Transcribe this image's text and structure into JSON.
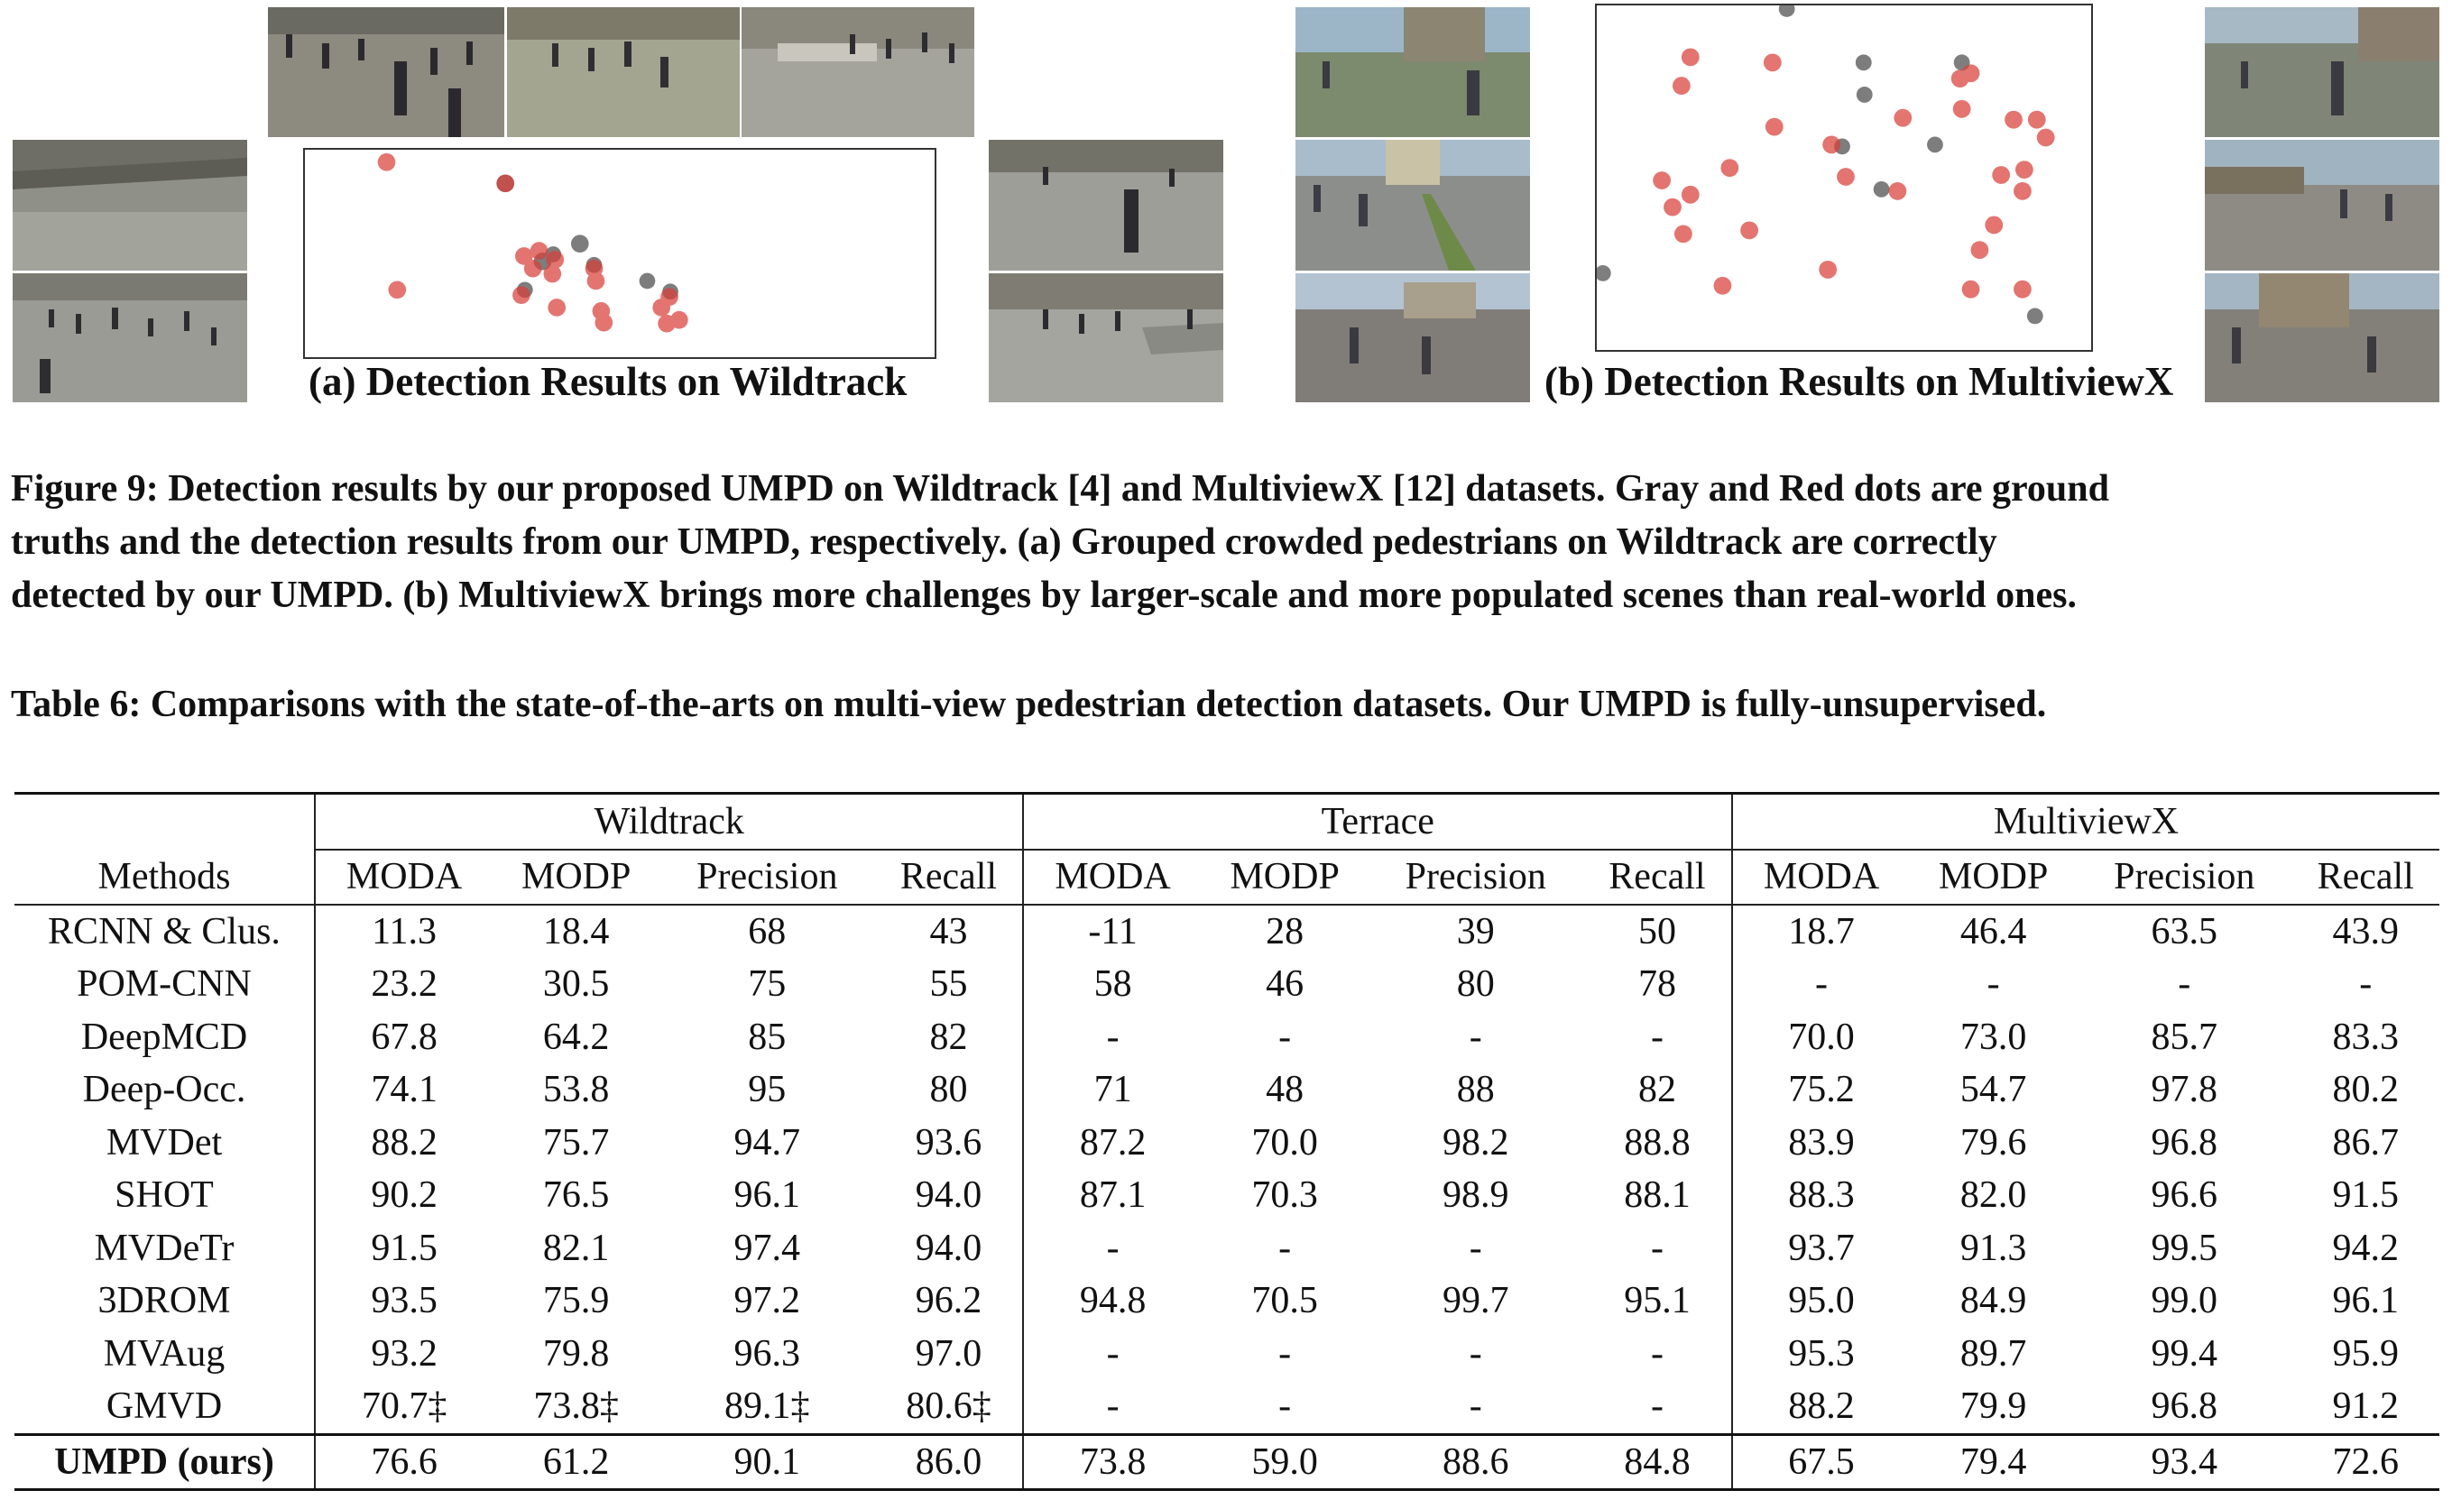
{
  "figure": {
    "wildtrack_caption": "(a) Detection Results on Wildtrack",
    "multiviewx_caption": "(b) Detection Results on MultiviewX",
    "caption_lines": [
      "Figure 9: Detection results by our proposed UMPD on Wildtrack [4] and MultiviewX [12] datasets. Gray and Red dots are ground",
      "truths and the detection results from our UMPD, respectively. (a) Grouped crowded pedestrians on Wildtrack are correctly",
      "detected by our UMPD. (b) MultiviewX brings more challenges by larger-scale and more populated scenes than real-world ones."
    ],
    "colors": {
      "ground_truth": "#707070",
      "detection": "#d9403a"
    }
  },
  "table": {
    "caption": "Table 6: Comparisons with the state-of-the-arts on multi-view pedestrian detection datasets. Our UMPD is fully-unsupervised.",
    "method_header": "Methods",
    "groups": [
      "Wildtrack",
      "Terrace",
      "MultiviewX"
    ],
    "columns": [
      "MODA",
      "MODP",
      "Precision",
      "Recall"
    ],
    "rows": [
      {
        "method": "RCNN & Clus.",
        "values": [
          "11.3",
          "18.4",
          "68",
          "43",
          "-11",
          "28",
          "39",
          "50",
          "18.7",
          "46.4",
          "63.5",
          "43.9"
        ]
      },
      {
        "method": "POM-CNN",
        "values": [
          "23.2",
          "30.5",
          "75",
          "55",
          "58",
          "46",
          "80",
          "78",
          "-",
          "-",
          "-",
          "-"
        ]
      },
      {
        "method": "DeepMCD",
        "values": [
          "67.8",
          "64.2",
          "85",
          "82",
          "-",
          "-",
          "-",
          "-",
          "70.0",
          "73.0",
          "85.7",
          "83.3"
        ]
      },
      {
        "method": "Deep-Occ.",
        "values": [
          "74.1",
          "53.8",
          "95",
          "80",
          "71",
          "48",
          "88",
          "82",
          "75.2",
          "54.7",
          "97.8",
          "80.2"
        ]
      },
      {
        "method": "MVDet",
        "values": [
          "88.2",
          "75.7",
          "94.7",
          "93.6",
          "87.2",
          "70.0",
          "98.2",
          "88.8",
          "83.9",
          "79.6",
          "96.8",
          "86.7"
        ]
      },
      {
        "method": "SHOT",
        "values": [
          "90.2",
          "76.5",
          "96.1",
          "94.0",
          "87.1",
          "70.3",
          "98.9",
          "88.1",
          "88.3",
          "82.0",
          "96.6",
          "91.5"
        ]
      },
      {
        "method": "MVDeTr",
        "values": [
          "91.5",
          "82.1",
          "97.4",
          "94.0",
          "-",
          "-",
          "-",
          "-",
          "93.7",
          "91.3",
          "99.5",
          "94.2"
        ]
      },
      {
        "method": "3DROM",
        "values": [
          "93.5",
          "75.9",
          "97.2",
          "96.2",
          "94.8",
          "70.5",
          "99.7",
          "95.1",
          "95.0",
          "84.9",
          "99.0",
          "96.1"
        ]
      },
      {
        "method": "MVAug",
        "values": [
          "93.2",
          "79.8",
          "96.3",
          "97.0",
          "-",
          "-",
          "-",
          "-",
          "95.3",
          "89.7",
          "99.4",
          "95.9"
        ]
      },
      {
        "method": "GMVD",
        "values": [
          "70.7‡",
          "73.8‡",
          "89.1‡",
          "80.6‡",
          "-",
          "-",
          "-",
          "-",
          "88.2",
          "79.9",
          "96.8",
          "91.2"
        ]
      }
    ],
    "ours": {
      "method": "UMPD (ours)",
      "values": [
        "76.6",
        "61.2",
        "90.1",
        "86.0",
        "73.8",
        "59.0",
        "88.6",
        "84.8",
        "67.5",
        "79.4",
        "93.4",
        "72.6"
      ]
    }
  }
}
